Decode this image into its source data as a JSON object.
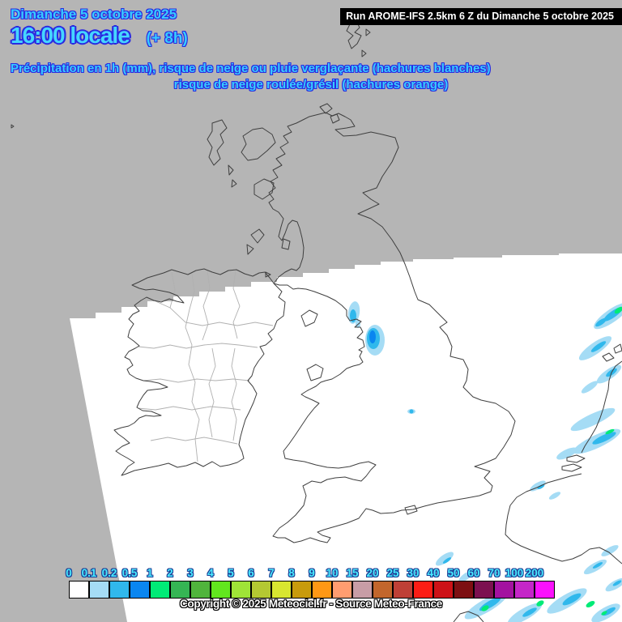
{
  "header": {
    "date": "Dimanche 5 octobre 2025",
    "time": "16:00 locale",
    "offset": "(+ 8h)",
    "legend_line1": "Précipitation en 1h (mm), risque de neige ou pluie verglaçante (hachures blanches)",
    "legend_line2": "risque de neige roulée/grésil (hachures orange)"
  },
  "run_box": {
    "text": "Run AROME-IFS 2.5km 6 Z du Dimanche 5 octobre 2025"
  },
  "scale": {
    "labels": [
      "0",
      "0.1",
      "0.2",
      "0.5",
      "1",
      "2",
      "3",
      "4",
      "5",
      "6",
      "7",
      "8",
      "9",
      "10",
      "15",
      "20",
      "25",
      "30",
      "40",
      "50",
      "60",
      "70",
      "100",
      "200"
    ],
    "colors": [
      "#ffffff",
      "#a5dcf5",
      "#30b8ec",
      "#0a86f0",
      "#00eb77",
      "#35b554",
      "#50b43c",
      "#62e61e",
      "#9fe437",
      "#b4c832",
      "#d8e630",
      "#c89b0c",
      "#ff9815",
      "#ff9d70",
      "#c89da6",
      "#c2662c",
      "#bf4036",
      "#fc1d15",
      "#cd1217",
      "#7d0f12",
      "#7c1050",
      "#a312a0",
      "#c526c8",
      "#fb11fd"
    ]
  },
  "copyright": "Copyright © 2025 Meteociel.fr - Source Meteo-France",
  "map": {
    "sea_color": "#b5b5b5",
    "domain_color": "#ffffff",
    "coast_color": "#3f3f3f",
    "county_border_color": "#b0b0b0",
    "precip_colors": {
      "p1": "#a5dcf5",
      "p2": "#30b8ec",
      "p3": "#0a86f0",
      "p4": "#00eb77"
    }
  }
}
